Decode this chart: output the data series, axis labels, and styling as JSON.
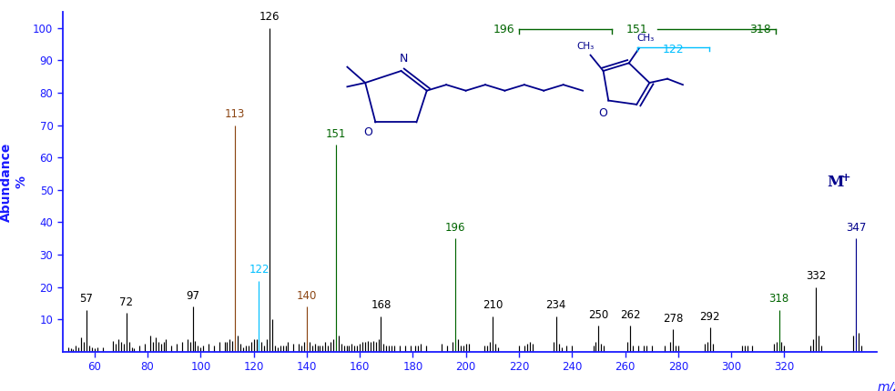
{
  "title": "",
  "xlim": [
    48,
    355
  ],
  "ylim": [
    0,
    105
  ],
  "yticks": [
    10,
    20,
    30,
    40,
    50,
    60,
    70,
    80,
    90,
    100
  ],
  "xticks": [
    60,
    80,
    100,
    120,
    140,
    160,
    180,
    200,
    220,
    240,
    260,
    280,
    300,
    320
  ],
  "background_color": "#ffffff",
  "peaks": [
    {
      "mz": 50,
      "intensity": 1.5,
      "label": null,
      "color": "black"
    },
    {
      "mz": 51,
      "intensity": 1.0,
      "label": null,
      "color": "black"
    },
    {
      "mz": 52,
      "intensity": 0.8,
      "label": null,
      "color": "black"
    },
    {
      "mz": 53,
      "intensity": 2.0,
      "label": null,
      "color": "black"
    },
    {
      "mz": 54,
      "intensity": 1.5,
      "label": null,
      "color": "black"
    },
    {
      "mz": 55,
      "intensity": 4.5,
      "label": null,
      "color": "black"
    },
    {
      "mz": 56,
      "intensity": 3.0,
      "label": null,
      "color": "black"
    },
    {
      "mz": 57,
      "intensity": 13.0,
      "label": "57",
      "color": "black"
    },
    {
      "mz": 58,
      "intensity": 2.0,
      "label": null,
      "color": "black"
    },
    {
      "mz": 59,
      "intensity": 1.5,
      "label": null,
      "color": "black"
    },
    {
      "mz": 60,
      "intensity": 1.0,
      "label": null,
      "color": "black"
    },
    {
      "mz": 61,
      "intensity": 1.5,
      "label": null,
      "color": "black"
    },
    {
      "mz": 63,
      "intensity": 1.5,
      "label": null,
      "color": "black"
    },
    {
      "mz": 67,
      "intensity": 3.5,
      "label": null,
      "color": "black"
    },
    {
      "mz": 68,
      "intensity": 2.5,
      "label": null,
      "color": "black"
    },
    {
      "mz": 69,
      "intensity": 4.0,
      "label": null,
      "color": "black"
    },
    {
      "mz": 70,
      "intensity": 3.0,
      "label": null,
      "color": "black"
    },
    {
      "mz": 71,
      "intensity": 2.5,
      "label": null,
      "color": "black"
    },
    {
      "mz": 72,
      "intensity": 12.0,
      "label": "72",
      "color": "black"
    },
    {
      "mz": 73,
      "intensity": 3.0,
      "label": null,
      "color": "black"
    },
    {
      "mz": 74,
      "intensity": 1.5,
      "label": null,
      "color": "black"
    },
    {
      "mz": 75,
      "intensity": 1.0,
      "label": null,
      "color": "black"
    },
    {
      "mz": 77,
      "intensity": 2.0,
      "label": null,
      "color": "black"
    },
    {
      "mz": 79,
      "intensity": 2.5,
      "label": null,
      "color": "black"
    },
    {
      "mz": 81,
      "intensity": 5.0,
      "label": null,
      "color": "black"
    },
    {
      "mz": 82,
      "intensity": 3.0,
      "label": null,
      "color": "black"
    },
    {
      "mz": 83,
      "intensity": 4.5,
      "label": null,
      "color": "black"
    },
    {
      "mz": 84,
      "intensity": 3.0,
      "label": null,
      "color": "black"
    },
    {
      "mz": 85,
      "intensity": 2.5,
      "label": null,
      "color": "black"
    },
    {
      "mz": 86,
      "intensity": 3.0,
      "label": null,
      "color": "black"
    },
    {
      "mz": 87,
      "intensity": 4.0,
      "label": null,
      "color": "black"
    },
    {
      "mz": 89,
      "intensity": 2.0,
      "label": null,
      "color": "black"
    },
    {
      "mz": 91,
      "intensity": 2.5,
      "label": null,
      "color": "black"
    },
    {
      "mz": 93,
      "intensity": 3.0,
      "label": null,
      "color": "black"
    },
    {
      "mz": 95,
      "intensity": 4.0,
      "label": null,
      "color": "black"
    },
    {
      "mz": 96,
      "intensity": 3.0,
      "label": null,
      "color": "black"
    },
    {
      "mz": 97,
      "intensity": 14.0,
      "label": "97",
      "color": "black"
    },
    {
      "mz": 98,
      "intensity": 3.5,
      "label": null,
      "color": "black"
    },
    {
      "mz": 99,
      "intensity": 2.0,
      "label": null,
      "color": "black"
    },
    {
      "mz": 100,
      "intensity": 1.5,
      "label": null,
      "color": "black"
    },
    {
      "mz": 101,
      "intensity": 2.0,
      "label": null,
      "color": "black"
    },
    {
      "mz": 103,
      "intensity": 2.5,
      "label": null,
      "color": "black"
    },
    {
      "mz": 105,
      "intensity": 2.0,
      "label": null,
      "color": "black"
    },
    {
      "mz": 107,
      "intensity": 3.0,
      "label": null,
      "color": "black"
    },
    {
      "mz": 109,
      "intensity": 3.0,
      "label": null,
      "color": "black"
    },
    {
      "mz": 110,
      "intensity": 3.0,
      "label": null,
      "color": "black"
    },
    {
      "mz": 111,
      "intensity": 4.0,
      "label": null,
      "color": "black"
    },
    {
      "mz": 112,
      "intensity": 3.5,
      "label": null,
      "color": "black"
    },
    {
      "mz": 113,
      "intensity": 70.0,
      "label": "113",
      "color": "#8B4513"
    },
    {
      "mz": 114,
      "intensity": 5.0,
      "label": null,
      "color": "black"
    },
    {
      "mz": 115,
      "intensity": 2.5,
      "label": null,
      "color": "black"
    },
    {
      "mz": 116,
      "intensity": 1.5,
      "label": null,
      "color": "black"
    },
    {
      "mz": 117,
      "intensity": 2.0,
      "label": null,
      "color": "black"
    },
    {
      "mz": 118,
      "intensity": 2.0,
      "label": null,
      "color": "black"
    },
    {
      "mz": 119,
      "intensity": 3.0,
      "label": null,
      "color": "black"
    },
    {
      "mz": 120,
      "intensity": 4.0,
      "label": null,
      "color": "black"
    },
    {
      "mz": 121,
      "intensity": 4.0,
      "label": null,
      "color": "black"
    },
    {
      "mz": 122,
      "intensity": 22.0,
      "label": "122",
      "color": "#00BFFF"
    },
    {
      "mz": 123,
      "intensity": 3.0,
      "label": null,
      "color": "black"
    },
    {
      "mz": 124,
      "intensity": 2.0,
      "label": null,
      "color": "black"
    },
    {
      "mz": 125,
      "intensity": 4.0,
      "label": null,
      "color": "black"
    },
    {
      "mz": 126,
      "intensity": 100.0,
      "label": "126",
      "color": "black"
    },
    {
      "mz": 127,
      "intensity": 10.0,
      "label": null,
      "color": "black"
    },
    {
      "mz": 128,
      "intensity": 2.0,
      "label": null,
      "color": "black"
    },
    {
      "mz": 129,
      "intensity": 1.5,
      "label": null,
      "color": "black"
    },
    {
      "mz": 130,
      "intensity": 2.0,
      "label": null,
      "color": "black"
    },
    {
      "mz": 131,
      "intensity": 2.0,
      "label": null,
      "color": "black"
    },
    {
      "mz": 132,
      "intensity": 2.0,
      "label": null,
      "color": "black"
    },
    {
      "mz": 133,
      "intensity": 3.0,
      "label": null,
      "color": "black"
    },
    {
      "mz": 135,
      "intensity": 2.5,
      "label": null,
      "color": "black"
    },
    {
      "mz": 137,
      "intensity": 2.5,
      "label": null,
      "color": "black"
    },
    {
      "mz": 138,
      "intensity": 2.0,
      "label": null,
      "color": "black"
    },
    {
      "mz": 139,
      "intensity": 3.0,
      "label": null,
      "color": "black"
    },
    {
      "mz": 140,
      "intensity": 14.0,
      "label": "140",
      "color": "#8B4513"
    },
    {
      "mz": 141,
      "intensity": 3.0,
      "label": null,
      "color": "black"
    },
    {
      "mz": 142,
      "intensity": 2.0,
      "label": null,
      "color": "black"
    },
    {
      "mz": 143,
      "intensity": 2.5,
      "label": null,
      "color": "black"
    },
    {
      "mz": 144,
      "intensity": 2.0,
      "label": null,
      "color": "black"
    },
    {
      "mz": 145,
      "intensity": 2.0,
      "label": null,
      "color": "black"
    },
    {
      "mz": 146,
      "intensity": 2.0,
      "label": null,
      "color": "black"
    },
    {
      "mz": 147,
      "intensity": 3.0,
      "label": null,
      "color": "black"
    },
    {
      "mz": 148,
      "intensity": 2.0,
      "label": null,
      "color": "black"
    },
    {
      "mz": 149,
      "intensity": 3.0,
      "label": null,
      "color": "black"
    },
    {
      "mz": 150,
      "intensity": 4.0,
      "label": null,
      "color": "black"
    },
    {
      "mz": 151,
      "intensity": 64.0,
      "label": "151",
      "color": "#006400"
    },
    {
      "mz": 152,
      "intensity": 5.0,
      "label": null,
      "color": "black"
    },
    {
      "mz": 153,
      "intensity": 2.5,
      "label": null,
      "color": "black"
    },
    {
      "mz": 154,
      "intensity": 2.0,
      "label": null,
      "color": "black"
    },
    {
      "mz": 155,
      "intensity": 2.0,
      "label": null,
      "color": "black"
    },
    {
      "mz": 156,
      "intensity": 2.0,
      "label": null,
      "color": "black"
    },
    {
      "mz": 157,
      "intensity": 2.5,
      "label": null,
      "color": "black"
    },
    {
      "mz": 158,
      "intensity": 2.0,
      "label": null,
      "color": "black"
    },
    {
      "mz": 159,
      "intensity": 2.0,
      "label": null,
      "color": "black"
    },
    {
      "mz": 160,
      "intensity": 2.5,
      "label": null,
      "color": "black"
    },
    {
      "mz": 161,
      "intensity": 3.0,
      "label": null,
      "color": "black"
    },
    {
      "mz": 162,
      "intensity": 3.0,
      "label": null,
      "color": "black"
    },
    {
      "mz": 163,
      "intensity": 3.5,
      "label": null,
      "color": "black"
    },
    {
      "mz": 164,
      "intensity": 3.0,
      "label": null,
      "color": "black"
    },
    {
      "mz": 165,
      "intensity": 3.5,
      "label": null,
      "color": "black"
    },
    {
      "mz": 166,
      "intensity": 3.0,
      "label": null,
      "color": "black"
    },
    {
      "mz": 167,
      "intensity": 4.0,
      "label": null,
      "color": "black"
    },
    {
      "mz": 168,
      "intensity": 11.0,
      "label": "168",
      "color": "black"
    },
    {
      "mz": 169,
      "intensity": 2.5,
      "label": null,
      "color": "black"
    },
    {
      "mz": 170,
      "intensity": 2.0,
      "label": null,
      "color": "black"
    },
    {
      "mz": 171,
      "intensity": 2.0,
      "label": null,
      "color": "black"
    },
    {
      "mz": 172,
      "intensity": 2.0,
      "label": null,
      "color": "black"
    },
    {
      "mz": 173,
      "intensity": 2.0,
      "label": null,
      "color": "black"
    },
    {
      "mz": 175,
      "intensity": 2.0,
      "label": null,
      "color": "black"
    },
    {
      "mz": 177,
      "intensity": 2.0,
      "label": null,
      "color": "black"
    },
    {
      "mz": 179,
      "intensity": 2.0,
      "label": null,
      "color": "black"
    },
    {
      "mz": 181,
      "intensity": 2.0,
      "label": null,
      "color": "black"
    },
    {
      "mz": 182,
      "intensity": 2.0,
      "label": null,
      "color": "black"
    },
    {
      "mz": 183,
      "intensity": 2.5,
      "label": null,
      "color": "black"
    },
    {
      "mz": 185,
      "intensity": 2.0,
      "label": null,
      "color": "black"
    },
    {
      "mz": 191,
      "intensity": 2.5,
      "label": null,
      "color": "black"
    },
    {
      "mz": 193,
      "intensity": 2.0,
      "label": null,
      "color": "black"
    },
    {
      "mz": 195,
      "intensity": 3.0,
      "label": null,
      "color": "black"
    },
    {
      "mz": 196,
      "intensity": 35.0,
      "label": "196",
      "color": "#006400"
    },
    {
      "mz": 197,
      "intensity": 4.0,
      "label": null,
      "color": "black"
    },
    {
      "mz": 198,
      "intensity": 2.0,
      "label": null,
      "color": "black"
    },
    {
      "mz": 199,
      "intensity": 2.0,
      "label": null,
      "color": "black"
    },
    {
      "mz": 200,
      "intensity": 2.5,
      "label": null,
      "color": "black"
    },
    {
      "mz": 201,
      "intensity": 2.5,
      "label": null,
      "color": "black"
    },
    {
      "mz": 207,
      "intensity": 2.0,
      "label": null,
      "color": "black"
    },
    {
      "mz": 208,
      "intensity": 2.0,
      "label": null,
      "color": "black"
    },
    {
      "mz": 209,
      "intensity": 3.0,
      "label": null,
      "color": "black"
    },
    {
      "mz": 210,
      "intensity": 11.0,
      "label": "210",
      "color": "black"
    },
    {
      "mz": 211,
      "intensity": 2.5,
      "label": null,
      "color": "black"
    },
    {
      "mz": 212,
      "intensity": 1.5,
      "label": null,
      "color": "black"
    },
    {
      "mz": 220,
      "intensity": 2.0,
      "label": null,
      "color": "black"
    },
    {
      "mz": 222,
      "intensity": 2.0,
      "label": null,
      "color": "black"
    },
    {
      "mz": 223,
      "intensity": 2.5,
      "label": null,
      "color": "black"
    },
    {
      "mz": 224,
      "intensity": 3.0,
      "label": null,
      "color": "black"
    },
    {
      "mz": 225,
      "intensity": 2.5,
      "label": null,
      "color": "black"
    },
    {
      "mz": 233,
      "intensity": 3.0,
      "label": null,
      "color": "black"
    },
    {
      "mz": 234,
      "intensity": 11.0,
      "label": "234",
      "color": "black"
    },
    {
      "mz": 235,
      "intensity": 2.5,
      "label": null,
      "color": "black"
    },
    {
      "mz": 236,
      "intensity": 1.5,
      "label": null,
      "color": "black"
    },
    {
      "mz": 238,
      "intensity": 2.0,
      "label": null,
      "color": "black"
    },
    {
      "mz": 240,
      "intensity": 2.0,
      "label": null,
      "color": "black"
    },
    {
      "mz": 248,
      "intensity": 2.0,
      "label": null,
      "color": "black"
    },
    {
      "mz": 249,
      "intensity": 3.0,
      "label": null,
      "color": "black"
    },
    {
      "mz": 250,
      "intensity": 8.0,
      "label": "250",
      "color": "black"
    },
    {
      "mz": 251,
      "intensity": 2.5,
      "label": null,
      "color": "black"
    },
    {
      "mz": 252,
      "intensity": 2.0,
      "label": null,
      "color": "black"
    },
    {
      "mz": 261,
      "intensity": 3.0,
      "label": null,
      "color": "black"
    },
    {
      "mz": 262,
      "intensity": 8.0,
      "label": "262",
      "color": "black"
    },
    {
      "mz": 263,
      "intensity": 2.0,
      "label": null,
      "color": "black"
    },
    {
      "mz": 265,
      "intensity": 2.0,
      "label": null,
      "color": "black"
    },
    {
      "mz": 267,
      "intensity": 2.0,
      "label": null,
      "color": "black"
    },
    {
      "mz": 268,
      "intensity": 2.0,
      "label": null,
      "color": "black"
    },
    {
      "mz": 270,
      "intensity": 2.0,
      "label": null,
      "color": "black"
    },
    {
      "mz": 275,
      "intensity": 2.0,
      "label": null,
      "color": "black"
    },
    {
      "mz": 277,
      "intensity": 3.0,
      "label": null,
      "color": "black"
    },
    {
      "mz": 278,
      "intensity": 7.0,
      "label": "278",
      "color": "black"
    },
    {
      "mz": 279,
      "intensity": 2.0,
      "label": null,
      "color": "black"
    },
    {
      "mz": 280,
      "intensity": 2.0,
      "label": null,
      "color": "black"
    },
    {
      "mz": 290,
      "intensity": 2.5,
      "label": null,
      "color": "black"
    },
    {
      "mz": 291,
      "intensity": 3.0,
      "label": null,
      "color": "black"
    },
    {
      "mz": 292,
      "intensity": 7.5,
      "label": "292",
      "color": "black"
    },
    {
      "mz": 293,
      "intensity": 2.5,
      "label": null,
      "color": "black"
    },
    {
      "mz": 304,
      "intensity": 2.0,
      "label": null,
      "color": "black"
    },
    {
      "mz": 305,
      "intensity": 2.0,
      "label": null,
      "color": "black"
    },
    {
      "mz": 306,
      "intensity": 2.0,
      "label": null,
      "color": "black"
    },
    {
      "mz": 308,
      "intensity": 2.0,
      "label": null,
      "color": "black"
    },
    {
      "mz": 316,
      "intensity": 2.5,
      "label": null,
      "color": "black"
    },
    {
      "mz": 317,
      "intensity": 3.0,
      "label": null,
      "color": "black"
    },
    {
      "mz": 318,
      "intensity": 13.0,
      "label": "318",
      "color": "#006400"
    },
    {
      "mz": 319,
      "intensity": 3.0,
      "label": null,
      "color": "black"
    },
    {
      "mz": 320,
      "intensity": 2.0,
      "label": null,
      "color": "black"
    },
    {
      "mz": 330,
      "intensity": 2.0,
      "label": null,
      "color": "black"
    },
    {
      "mz": 331,
      "intensity": 4.0,
      "label": null,
      "color": "black"
    },
    {
      "mz": 332,
      "intensity": 20.0,
      "label": "332",
      "color": "black"
    },
    {
      "mz": 333,
      "intensity": 5.0,
      "label": null,
      "color": "black"
    },
    {
      "mz": 334,
      "intensity": 2.0,
      "label": null,
      "color": "black"
    },
    {
      "mz": 346,
      "intensity": 5.0,
      "label": null,
      "color": "black"
    },
    {
      "mz": 347,
      "intensity": 35.0,
      "label": "347",
      "color": "#00008B"
    },
    {
      "mz": 348,
      "intensity": 6.0,
      "label": null,
      "color": "black"
    },
    {
      "mz": 349,
      "intensity": 2.0,
      "label": null,
      "color": "black"
    }
  ],
  "labeled_peak_colors": {
    "57": "black",
    "72": "black",
    "97": "black",
    "113": "#8B4513",
    "122": "#00BFFF",
    "126": "black",
    "140": "#8B4513",
    "151": "#006400",
    "168": "black",
    "196": "#006400",
    "210": "black",
    "234": "black",
    "250": "black",
    "262": "black",
    "278": "black",
    "292": "black",
    "318": "#006400",
    "332": "black",
    "347": "#00008B"
  },
  "mplus_color": "#00008B",
  "axis_color": "#1a1aff",
  "tick_color": "#1a1aff",
  "ylabel_color": "#1a1aff",
  "xlabel_color": "#1a1aff",
  "struct_color": "#00008B",
  "struct_green": "#006400",
  "struct_cyan": "#00BFFF"
}
